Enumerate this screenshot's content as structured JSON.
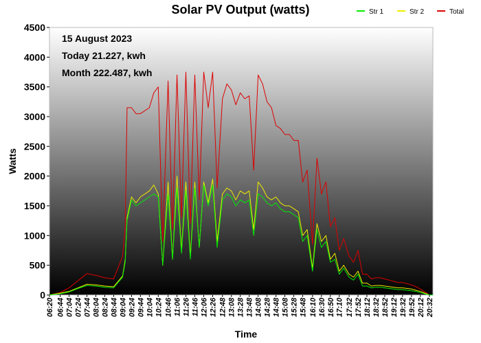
{
  "chart_data": {
    "type": "line",
    "title": "Solar PV Output (watts)",
    "xlabel": "Time",
    "ylabel": "Watts",
    "ylim": [
      0,
      4500
    ],
    "yticks": [
      0,
      500,
      1000,
      1500,
      2000,
      2500,
      3000,
      3500,
      4000,
      4500
    ],
    "xticks": [
      "06:20",
      "06:44",
      "07:04",
      "07:24",
      "07:44",
      "08:04",
      "08:24",
      "08:44",
      "09:04",
      "09:24",
      "09:44",
      "10:04",
      "10:24",
      "10:46",
      "11:06",
      "11:26",
      "11:46",
      "12:06",
      "12:26",
      "12:48",
      "13:08",
      "13:28",
      "13:48",
      "14:08",
      "14:28",
      "14:48",
      "15:08",
      "15:28",
      "15:48",
      "16:10",
      "16:30",
      "16:50",
      "17:10",
      "17:32",
      "17:52",
      "18:12",
      "18:32",
      "18:52",
      "19:12",
      "19:32",
      "19:52",
      "20:12",
      "20:32"
    ],
    "annotations": [
      "15 August 2023",
      "Today 21.227, kwh",
      "Month 222.487, kwh"
    ],
    "legend_position": "top-right",
    "grid": false,
    "colors": {
      "Str 1": "#00ee00",
      "Str 2": "#eeee00",
      "Total": "#dd0000"
    },
    "x": [
      "06:20",
      "06:44",
      "07:04",
      "07:24",
      "07:44",
      "08:04",
      "08:24",
      "08:44",
      "09:04",
      "09:10",
      "09:14",
      "09:24",
      "09:34",
      "09:44",
      "10:04",
      "10:14",
      "10:24",
      "10:34",
      "10:46",
      "10:56",
      "11:06",
      "11:16",
      "11:26",
      "11:36",
      "11:46",
      "11:56",
      "12:06",
      "12:16",
      "12:26",
      "12:36",
      "12:48",
      "12:58",
      "13:08",
      "13:18",
      "13:28",
      "13:38",
      "13:48",
      "13:58",
      "14:08",
      "14:18",
      "14:28",
      "14:38",
      "14:48",
      "14:58",
      "15:08",
      "15:18",
      "15:28",
      "15:38",
      "15:48",
      "15:58",
      "16:10",
      "16:20",
      "16:30",
      "16:40",
      "16:50",
      "17:00",
      "17:10",
      "17:20",
      "17:32",
      "17:42",
      "17:52",
      "18:02",
      "18:12",
      "18:22",
      "18:32",
      "18:42",
      "18:52",
      "19:02",
      "19:12",
      "19:22",
      "19:32",
      "19:42",
      "19:52",
      "20:02",
      "20:12",
      "20:22",
      "20:32",
      "20:40"
    ],
    "series": [
      {
        "name": "Str 1",
        "values": [
          0,
          20,
          50,
          110,
          160,
          150,
          130,
          120,
          300,
          560,
          1250,
          1600,
          1500,
          1550,
          1650,
          1700,
          1650,
          500,
          1700,
          600,
          1800,
          700,
          1750,
          600,
          1800,
          800,
          1850,
          1500,
          1850,
          800,
          1600,
          1700,
          1650,
          1500,
          1600,
          1550,
          1600,
          1000,
          1700,
          1650,
          1550,
          1500,
          1550,
          1450,
          1400,
          1400,
          1350,
          1300,
          900,
          1000,
          400,
          1100,
          800,
          900,
          550,
          600,
          350,
          450,
          300,
          250,
          350,
          150,
          150,
          120,
          130,
          130,
          120,
          110,
          100,
          90,
          90,
          80,
          70,
          60,
          40,
          20,
          0,
          0
        ]
      },
      {
        "name": "Str 2",
        "values": [
          0,
          30,
          60,
          120,
          180,
          170,
          150,
          140,
          320,
          600,
          1300,
          1650,
          1550,
          1650,
          1750,
          1850,
          1700,
          500,
          1900,
          600,
          2000,
          750,
          1900,
          650,
          1900,
          800,
          1900,
          1550,
          1950,
          900,
          1700,
          1800,
          1750,
          1600,
          1750,
          1700,
          1750,
          1100,
          1900,
          1800,
          1650,
          1600,
          1650,
          1550,
          1500,
          1500,
          1450,
          1400,
          1000,
          1100,
          450,
          1200,
          900,
          1000,
          600,
          700,
          400,
          500,
          350,
          300,
          400,
          200,
          200,
          150,
          160,
          160,
          150,
          140,
          130,
          120,
          120,
          110,
          100,
          80,
          60,
          30,
          0,
          0
        ]
      },
      {
        "name": "Total",
        "values": [
          0,
          40,
          120,
          240,
          360,
          330,
          290,
          270,
          650,
          1150,
          3150,
          3150,
          3050,
          3050,
          3150,
          3400,
          3500,
          900,
          3600,
          1100,
          3700,
          1300,
          3750,
          1200,
          3700,
          1600,
          3750,
          3150,
          3750,
          1800,
          3300,
          3550,
          3450,
          3200,
          3400,
          3300,
          3350,
          2100,
          3700,
          3550,
          3250,
          3150,
          2850,
          2800,
          2700,
          2700,
          2600,
          2600,
          1900,
          2100,
          850,
          2300,
          1700,
          1900,
          1150,
          1300,
          750,
          950,
          650,
          550,
          750,
          350,
          350,
          270,
          290,
          290,
          270,
          250,
          230,
          210,
          210,
          190,
          170,
          140,
          100,
          50,
          0,
          0
        ]
      }
    ]
  }
}
